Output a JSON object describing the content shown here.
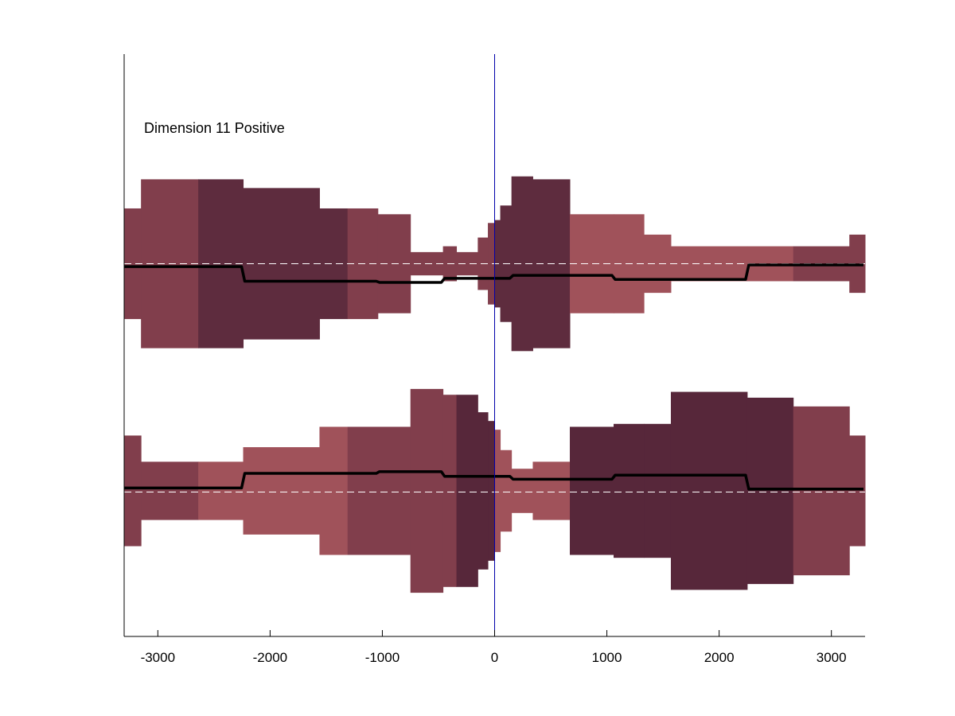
{
  "chart_data": {
    "type": "area",
    "title": "",
    "xlabel": "",
    "ylabel": "",
    "xlim": [
      -3300,
      3300
    ],
    "ylim": [
      0,
      10
    ],
    "grid": false,
    "annotation": "Dimension 11 Positive",
    "xticks": [
      {
        "value": -3000,
        "label": "-3000"
      },
      {
        "value": -2000,
        "label": "-2000"
      },
      {
        "value": -1000,
        "label": "-1000"
      },
      {
        "value": 0,
        "label": "0"
      },
      {
        "value": 1000,
        "label": "1000"
      },
      {
        "value": 2000,
        "label": "2000"
      },
      {
        "value": 3000,
        "label": "3000"
      }
    ],
    "vline_x": 0,
    "colors": {
      "light": "#a0525a",
      "mid": "#813e4c",
      "dark": "#5e2c3e",
      "darkest": "#57273a",
      "line": "#000000",
      "dashed": "#ffffff",
      "vline": "#0000aa"
    },
    "series": [
      {
        "baseline": 6.4,
        "segments": [
          {
            "x0": -3300,
            "x1": -3150,
            "half": 0.95,
            "shade": "mid"
          },
          {
            "x0": -3150,
            "x1": -2640,
            "half": 1.45,
            "shade": "mid"
          },
          {
            "x0": -2640,
            "x1": -2240,
            "half": 1.45,
            "shade": "dark"
          },
          {
            "x0": -2240,
            "x1": -1560,
            "half": 1.3,
            "shade": "dark"
          },
          {
            "x0": -1560,
            "x1": -1310,
            "half": 0.95,
            "shade": "dark"
          },
          {
            "x0": -1310,
            "x1": -1040,
            "half": 0.95,
            "shade": "mid"
          },
          {
            "x0": -1040,
            "x1": -750,
            "half": 0.85,
            "shade": "mid"
          },
          {
            "x0": -750,
            "x1": -460,
            "half": 0.2,
            "shade": "mid"
          },
          {
            "x0": -460,
            "x1": -340,
            "half": 0.3,
            "shade": "mid"
          },
          {
            "x0": -340,
            "x1": -150,
            "half": 0.2,
            "shade": "mid"
          },
          {
            "x0": -150,
            "x1": -60,
            "half": 0.45,
            "shade": "mid"
          },
          {
            "x0": -60,
            "x1": 0,
            "half": 0.7,
            "shade": "mid"
          },
          {
            "x0": 0,
            "x1": 50,
            "half": 0.75,
            "shade": "dark"
          },
          {
            "x0": 50,
            "x1": 150,
            "half": 1.0,
            "shade": "dark"
          },
          {
            "x0": 150,
            "x1": 340,
            "half": 1.5,
            "shade": "dark"
          },
          {
            "x0": 340,
            "x1": 670,
            "half": 1.45,
            "shade": "dark"
          },
          {
            "x0": 670,
            "x1": 1060,
            "half": 0.85,
            "shade": "light"
          },
          {
            "x0": 1060,
            "x1": 1330,
            "half": 0.85,
            "shade": "light"
          },
          {
            "x0": 1330,
            "x1": 1570,
            "half": 0.5,
            "shade": "light"
          },
          {
            "x0": 1570,
            "x1": 2250,
            "half": 0.3,
            "shade": "light"
          },
          {
            "x0": 2250,
            "x1": 2660,
            "half": 0.3,
            "shade": "light"
          },
          {
            "x0": 2660,
            "x1": 3160,
            "half": 0.3,
            "shade": "mid"
          },
          {
            "x0": 3160,
            "x1": 3300,
            "half": 0.5,
            "shade": "mid"
          }
        ],
        "mean_line": [
          {
            "x0": -3300,
            "x1": -2240,
            "y": 6.35
          },
          {
            "x0": -2240,
            "x1": -1040,
            "y": 6.1
          },
          {
            "x0": -1040,
            "x1": -460,
            "y": 6.08
          },
          {
            "x0": -460,
            "x1": 150,
            "y": 6.15
          },
          {
            "x0": 150,
            "x1": 1060,
            "y": 6.2
          },
          {
            "x0": 1060,
            "x1": 2250,
            "y": 6.13
          },
          {
            "x0": 2250,
            "x1": 3300,
            "y": 6.38
          }
        ],
        "dashed_y": 6.4
      },
      {
        "baseline": 2.5,
        "segments": [
          {
            "x0": -3300,
            "x1": -3150,
            "half": 0.95,
            "shade": "mid"
          },
          {
            "x0": -3150,
            "x1": -2640,
            "half": 0.5,
            "shade": "mid"
          },
          {
            "x0": -2640,
            "x1": -2240,
            "half": 0.5,
            "shade": "light"
          },
          {
            "x0": -2240,
            "x1": -1560,
            "half": 0.75,
            "shade": "light"
          },
          {
            "x0": -1560,
            "x1": -1310,
            "half": 1.1,
            "shade": "light"
          },
          {
            "x0": -1310,
            "x1": -750,
            "half": 1.1,
            "shade": "mid"
          },
          {
            "x0": -750,
            "x1": -460,
            "half": 1.75,
            "shade": "mid"
          },
          {
            "x0": -460,
            "x1": -340,
            "half": 1.65,
            "shade": "mid"
          },
          {
            "x0": -340,
            "x1": -150,
            "half": 1.65,
            "shade": "darkest"
          },
          {
            "x0": -150,
            "x1": -60,
            "half": 1.35,
            "shade": "darkest"
          },
          {
            "x0": -60,
            "x1": 0,
            "half": 1.2,
            "shade": "darkest"
          },
          {
            "x0": 0,
            "x1": 50,
            "half": 1.05,
            "shade": "light"
          },
          {
            "x0": 50,
            "x1": 150,
            "half": 0.7,
            "shade": "light"
          },
          {
            "x0": 150,
            "x1": 340,
            "half": 0.38,
            "shade": "light"
          },
          {
            "x0": 340,
            "x1": 670,
            "half": 0.5,
            "shade": "light"
          },
          {
            "x0": 670,
            "x1": 1060,
            "half": 1.1,
            "shade": "darkest"
          },
          {
            "x0": 1060,
            "x1": 1330,
            "half": 1.15,
            "shade": "darkest"
          },
          {
            "x0": 1330,
            "x1": 1570,
            "half": 1.15,
            "shade": "darkest"
          },
          {
            "x0": 1570,
            "x1": 2250,
            "half": 1.7,
            "shade": "darkest"
          },
          {
            "x0": 2250,
            "x1": 2660,
            "half": 1.6,
            "shade": "darkest"
          },
          {
            "x0": 2660,
            "x1": 3160,
            "half": 1.45,
            "shade": "mid"
          },
          {
            "x0": 3160,
            "x1": 3300,
            "half": 0.95,
            "shade": "mid"
          }
        ],
        "mean_line": [
          {
            "x0": -3300,
            "x1": -2240,
            "y": 2.55
          },
          {
            "x0": -2240,
            "x1": -1040,
            "y": 2.8
          },
          {
            "x0": -1040,
            "x1": -460,
            "y": 2.83
          },
          {
            "x0": -460,
            "x1": 150,
            "y": 2.75
          },
          {
            "x0": 150,
            "x1": 1060,
            "y": 2.7
          },
          {
            "x0": 1060,
            "x1": 2250,
            "y": 2.77
          },
          {
            "x0": 2250,
            "x1": 3300,
            "y": 2.53
          }
        ],
        "dashed_y": 2.48
      }
    ]
  }
}
